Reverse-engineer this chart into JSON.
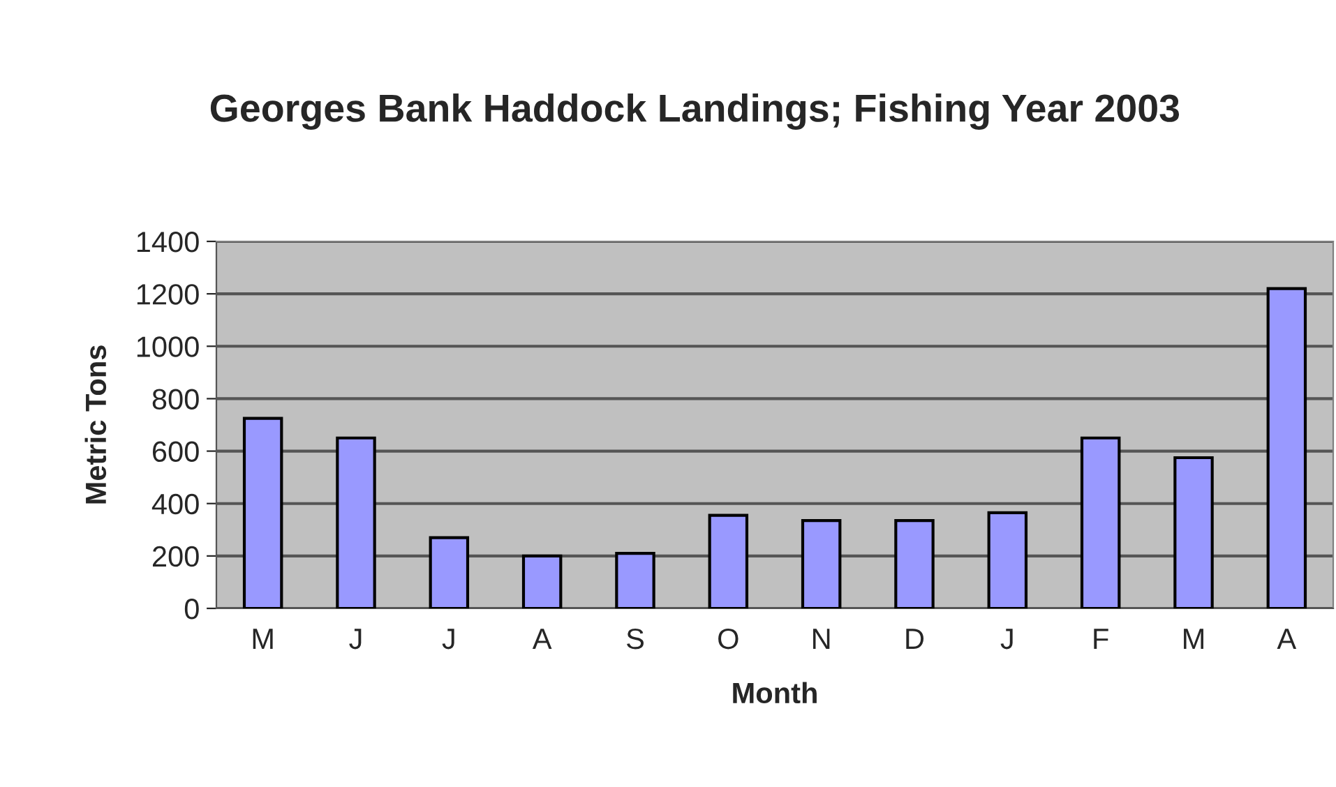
{
  "chart_data": {
    "type": "bar",
    "title": "Georges Bank Haddock Landings; Fishing Year 2003",
    "xlabel": "Month",
    "ylabel": "Metric Tons",
    "categories": [
      "M",
      "J",
      "J",
      "A",
      "S",
      "O",
      "N",
      "D",
      "J",
      "F",
      "M",
      "A"
    ],
    "values": [
      725,
      650,
      270,
      200,
      210,
      355,
      335,
      335,
      365,
      650,
      575,
      1220
    ],
    "color": "#9999ff",
    "ylim": [
      0,
      1400
    ],
    "yticks": [
      0,
      200,
      400,
      600,
      800,
      1000,
      1200,
      1400
    ],
    "grid": "y",
    "legend": false
  }
}
